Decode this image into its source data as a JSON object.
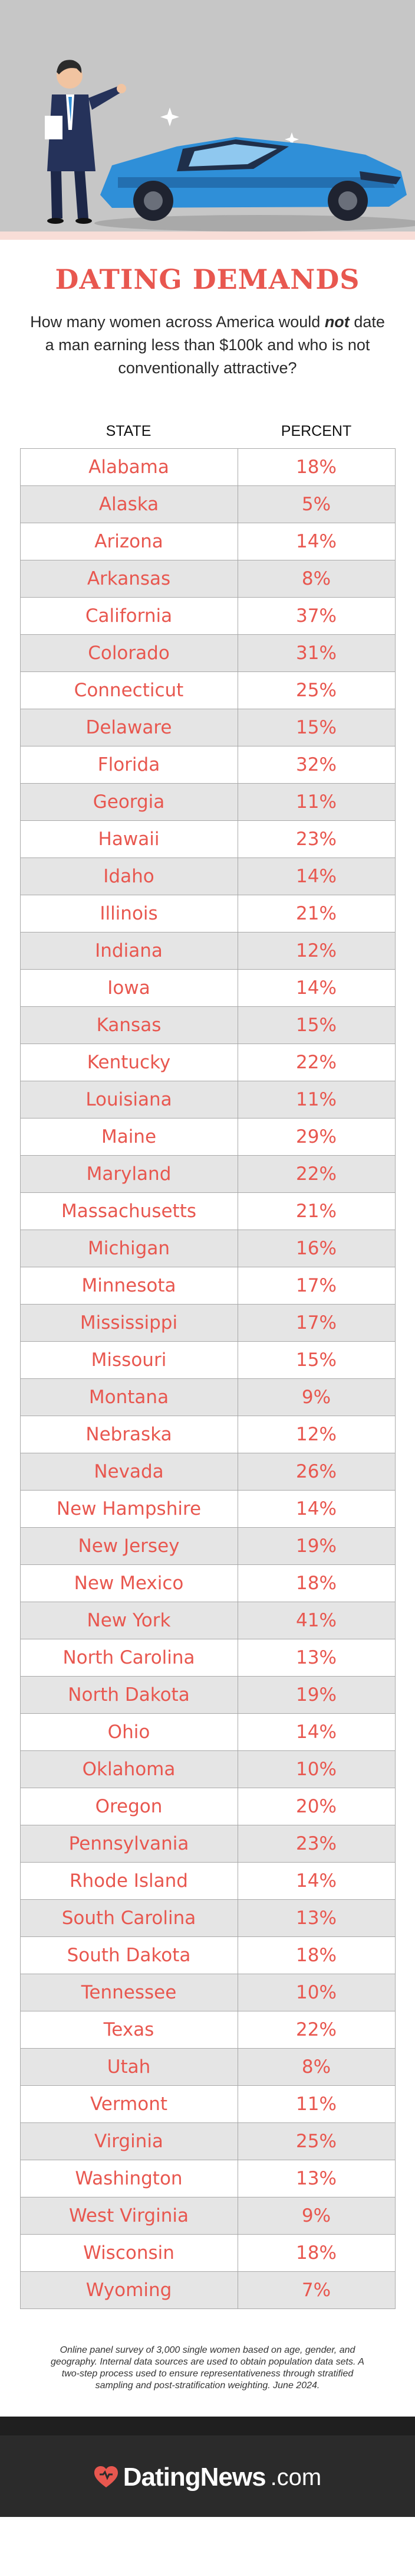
{
  "header": {
    "title": "DATING DEMANDS",
    "question_before": "How many women across America would",
    "question_emphasis": "not",
    "question_after": "date a man earning less than $100k and who is not conventionally attractive?"
  },
  "table": {
    "columns": [
      "STATE",
      "PERCENT"
    ],
    "rows": [
      {
        "state": "Alabama",
        "percent": "18%"
      },
      {
        "state": "Alaska",
        "percent": "5%"
      },
      {
        "state": "Arizona",
        "percent": "14%"
      },
      {
        "state": "Arkansas",
        "percent": "8%"
      },
      {
        "state": "California",
        "percent": "37%"
      },
      {
        "state": "Colorado",
        "percent": "31%"
      },
      {
        "state": "Connecticut",
        "percent": "25%"
      },
      {
        "state": "Delaware",
        "percent": "15%"
      },
      {
        "state": "Florida",
        "percent": "32%"
      },
      {
        "state": "Georgia",
        "percent": "11%"
      },
      {
        "state": "Hawaii",
        "percent": "23%"
      },
      {
        "state": "Idaho",
        "percent": "14%"
      },
      {
        "state": "Illinois",
        "percent": "21%"
      },
      {
        "state": "Indiana",
        "percent": "12%"
      },
      {
        "state": "Iowa",
        "percent": "14%"
      },
      {
        "state": "Kansas",
        "percent": "15%"
      },
      {
        "state": "Kentucky",
        "percent": "22%"
      },
      {
        "state": "Louisiana",
        "percent": "11%"
      },
      {
        "state": "Maine",
        "percent": "29%"
      },
      {
        "state": "Maryland",
        "percent": "22%"
      },
      {
        "state": "Massachusetts",
        "percent": "21%"
      },
      {
        "state": "Michigan",
        "percent": "16%"
      },
      {
        "state": "Minnesota",
        "percent": "17%"
      },
      {
        "state": "Mississippi",
        "percent": "17%"
      },
      {
        "state": "Missouri",
        "percent": "15%"
      },
      {
        "state": "Montana",
        "percent": "9%"
      },
      {
        "state": "Nebraska",
        "percent": "12%"
      },
      {
        "state": "Nevada",
        "percent": "26%"
      },
      {
        "state": "New Hampshire",
        "percent": "14%"
      },
      {
        "state": "New Jersey",
        "percent": "19%"
      },
      {
        "state": "New Mexico",
        "percent": "18%"
      },
      {
        "state": "New York",
        "percent": "41%"
      },
      {
        "state": "North Carolina",
        "percent": "13%"
      },
      {
        "state": "North Dakota",
        "percent": "19%"
      },
      {
        "state": "Ohio",
        "percent": "14%"
      },
      {
        "state": "Oklahoma",
        "percent": "10%"
      },
      {
        "state": "Oregon",
        "percent": "20%"
      },
      {
        "state": "Pennsylvania",
        "percent": "23%"
      },
      {
        "state": "Rhode Island",
        "percent": "14%"
      },
      {
        "state": "South Carolina",
        "percent": "13%"
      },
      {
        "state": "South Dakota",
        "percent": "18%"
      },
      {
        "state": "Tennessee",
        "percent": "10%"
      },
      {
        "state": "Texas",
        "percent": "22%"
      },
      {
        "state": "Utah",
        "percent": "8%"
      },
      {
        "state": "Vermont",
        "percent": "11%"
      },
      {
        "state": "Virginia",
        "percent": "25%"
      },
      {
        "state": "Washington",
        "percent": "13%"
      },
      {
        "state": "West Virginia",
        "percent": "9%"
      },
      {
        "state": "Wisconsin",
        "percent": "18%"
      },
      {
        "state": "Wyoming",
        "percent": "7%"
      }
    ]
  },
  "footnote": "Online panel survey of 3,000 single women based on age, gender, and geography. Internal data sources are used to obtain population data sets. A two-step process used to ensure representativeness through stratified sampling and post-stratification weighting. June 2024.",
  "footer": {
    "brand": "DatingNews",
    "tld": ".com"
  },
  "colors": {
    "accent": "#e8574f",
    "hero_bg": "#c6c6c6",
    "car": "#2f8fd8",
    "footer_bg": "#2b2b2b"
  },
  "icons": [
    "businessman-illustration",
    "sports-car-illustration",
    "sparkle-icon",
    "heart-logo-icon"
  ]
}
